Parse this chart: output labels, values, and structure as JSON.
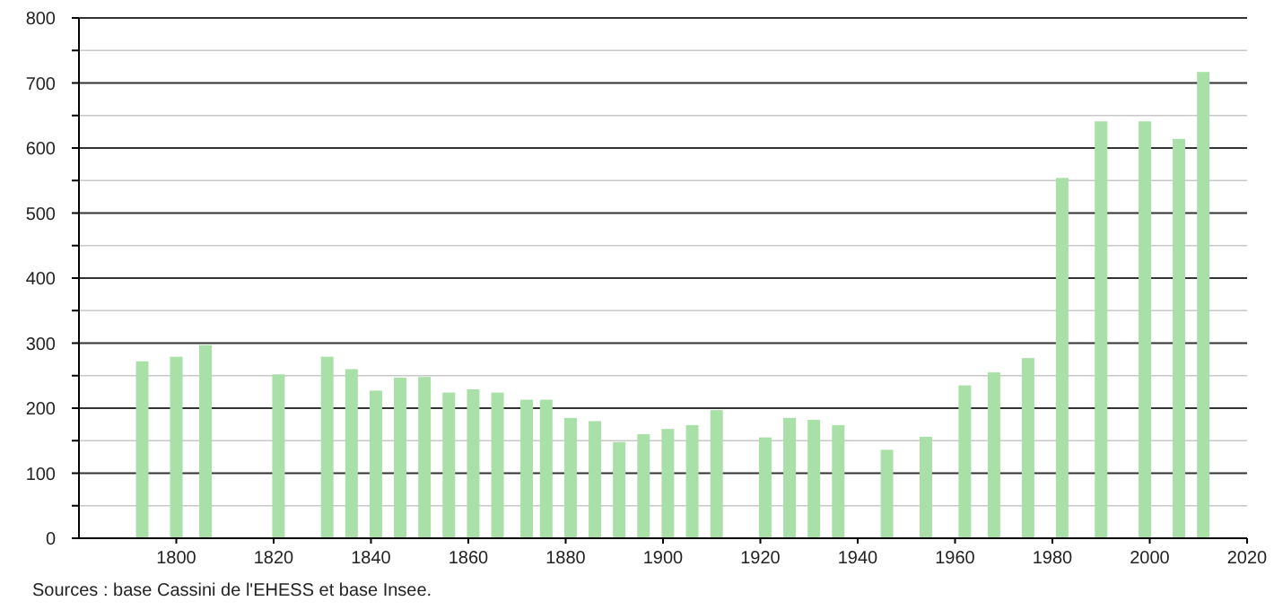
{
  "chart_data": {
    "type": "bar",
    "x": [
      1793,
      1800,
      1806,
      1821,
      1831,
      1836,
      1841,
      1846,
      1851,
      1856,
      1861,
      1866,
      1872,
      1876,
      1881,
      1886,
      1891,
      1896,
      1901,
      1906,
      1911,
      1921,
      1926,
      1931,
      1936,
      1946,
      1954,
      1962,
      1968,
      1975,
      1982,
      1990,
      1999,
      2006,
      2011
    ],
    "values": [
      272,
      279,
      297,
      252,
      279,
      260,
      227,
      247,
      248,
      224,
      229,
      224,
      213,
      213,
      185,
      180,
      148,
      160,
      168,
      174,
      197,
      155,
      185,
      182,
      174,
      136,
      156,
      235,
      255,
      277,
      554,
      641,
      641,
      614,
      717
    ],
    "color": "#a8e0a8",
    "xlim": [
      1780,
      2020
    ],
    "xticks": [
      1800,
      1820,
      1840,
      1860,
      1880,
      1900,
      1920,
      1940,
      1960,
      1980,
      2000,
      2020
    ],
    "ylim": [
      0,
      800
    ],
    "yticks": [
      0,
      {
        "value": 50,
        "label": null
      },
      100,
      {
        "value": 150,
        "label": null
      },
      200,
      {
        "value": 250,
        "label": null
      },
      300,
      {
        "value": 350,
        "label": null
      },
      400,
      {
        "value": 450,
        "label": null
      },
      500,
      {
        "value": 550,
        "label": null
      },
      600,
      {
        "value": 650,
        "label": null
      },
      700,
      {
        "value": 750,
        "label": null
      },
      800
    ],
    "grid": true,
    "annotations": [
      "Sources : base Cassini de l'EHESS et base Insee."
    ]
  }
}
